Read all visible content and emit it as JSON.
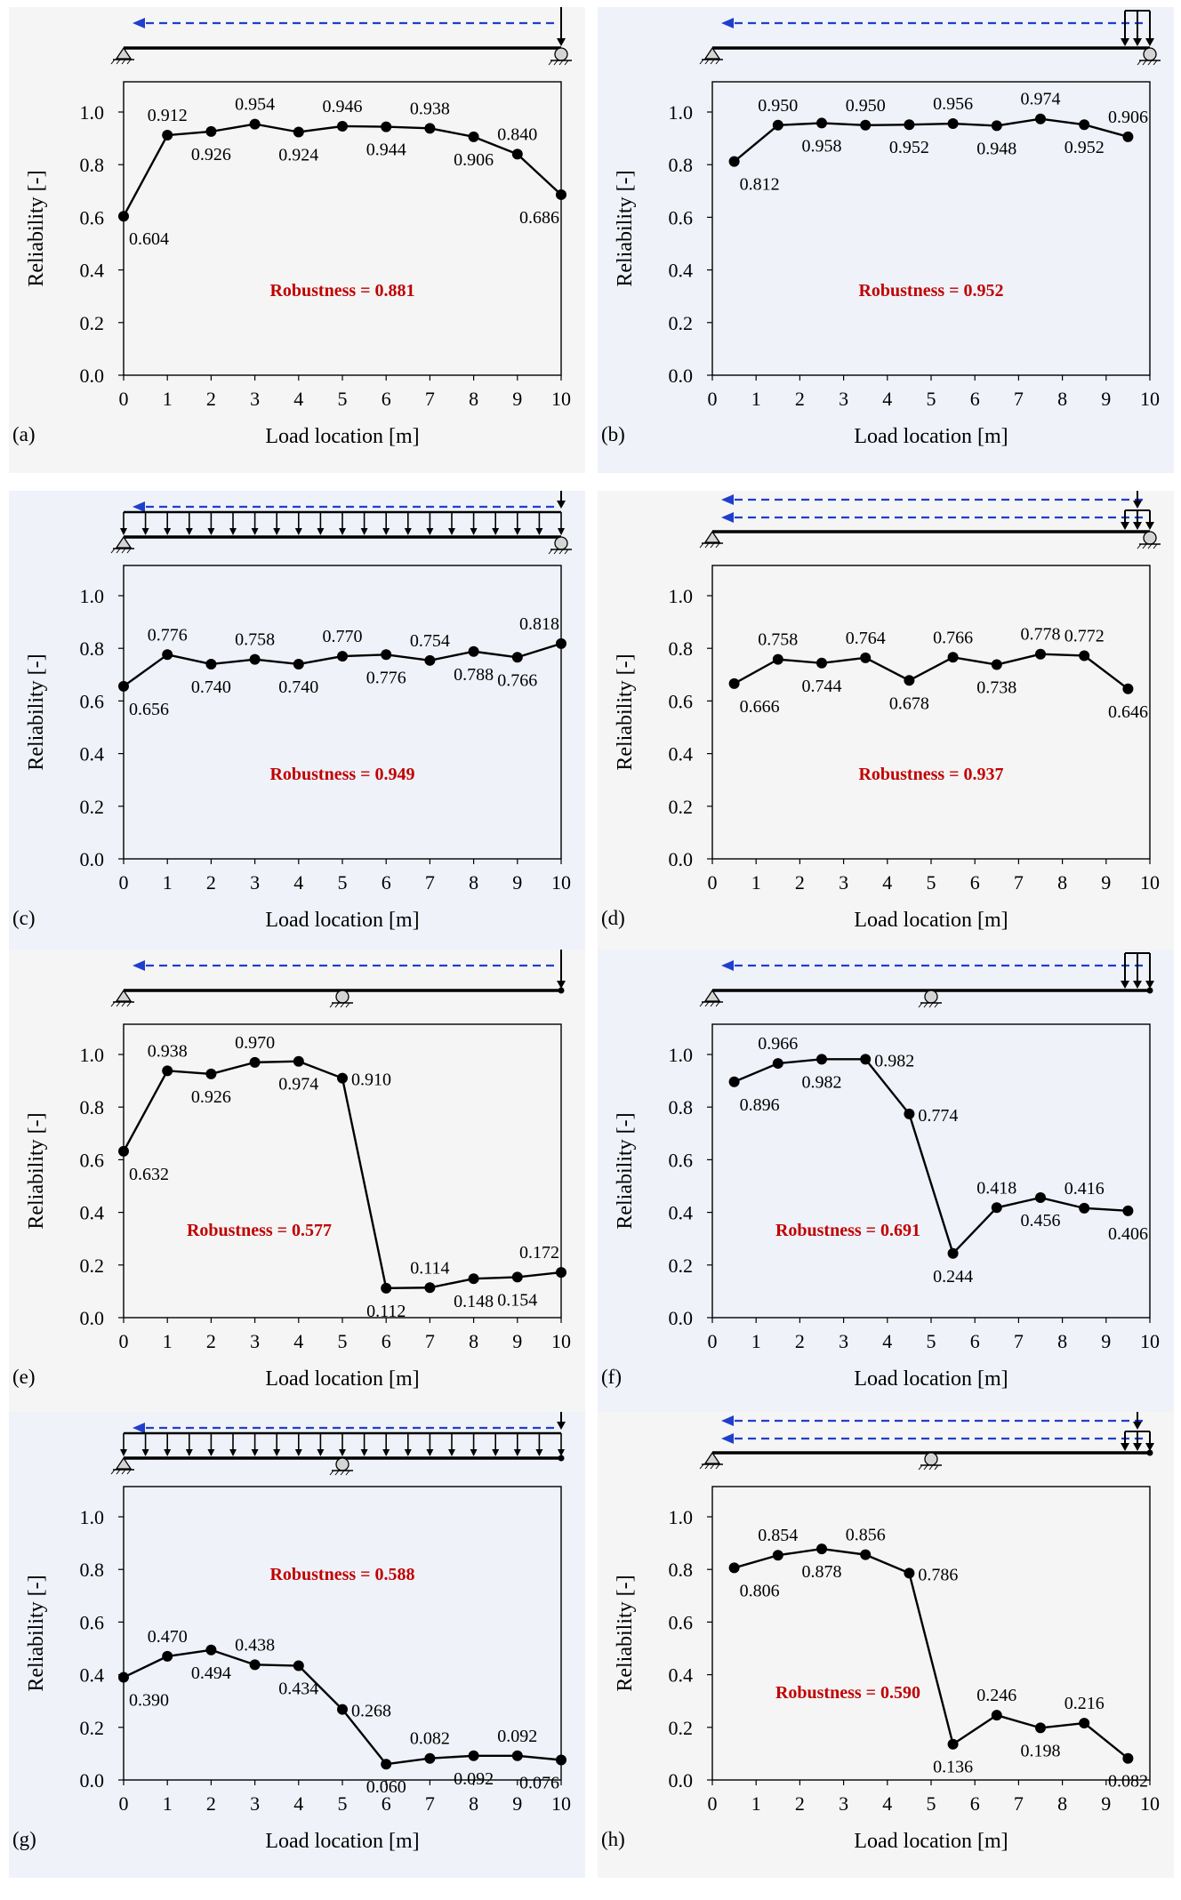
{
  "colors": {
    "panel_bg_gray": "#f5f5f5",
    "panel_bg_blue": "#eff2f9",
    "line": "#000000",
    "robust": "#c00000",
    "arrow": "#1f3fcc",
    "support_fill": "#d4d4d4"
  },
  "chart_data": [
    {
      "type": "line",
      "panel_label": "(a)",
      "bg": "gray",
      "title": "",
      "xlabel": "Load location [m]",
      "ylabel": "Reliability [-]",
      "xlim": [
        0,
        10
      ],
      "ylim": [
        0,
        1.1
      ],
      "x_ticks": [
        0,
        1,
        2,
        3,
        4,
        5,
        6,
        7,
        8,
        9,
        10
      ],
      "y_ticks": [
        "0.0",
        "0.2",
        "0.4",
        "0.6",
        "0.8",
        "1.0"
      ],
      "x": [
        0,
        1,
        2,
        3,
        4,
        5,
        6,
        7,
        8,
        9,
        10
      ],
      "values": [
        0.604,
        0.912,
        0.926,
        0.954,
        0.924,
        0.946,
        0.944,
        0.938,
        0.906,
        0.84,
        0.686
      ],
      "labels": [
        "0.604",
        "0.912",
        "0.926",
        "0.954",
        "0.924",
        "0.946",
        "0.944",
        "0.938",
        "0.906",
        "0.840",
        "0.686"
      ],
      "label_pos": [
        "below",
        "above",
        "below",
        "above",
        "below",
        "above",
        "below",
        "above",
        "below",
        "above",
        "below"
      ],
      "robustness_text": "Robustness = 0.881",
      "robust_pos": "middle",
      "schematic": {
        "supports": "end",
        "load": "point",
        "arrows": 1
      }
    },
    {
      "type": "line",
      "panel_label": "(b)",
      "bg": "blue",
      "title": "",
      "xlabel": "Load location [m]",
      "ylabel": "Reliability [-]",
      "xlim": [
        0,
        10
      ],
      "ylim": [
        0,
        1.1
      ],
      "x_ticks": [
        0,
        1,
        2,
        3,
        4,
        5,
        6,
        7,
        8,
        9,
        10
      ],
      "y_ticks": [
        "0.0",
        "0.2",
        "0.4",
        "0.6",
        "0.8",
        "1.0"
      ],
      "x": [
        0.5,
        1.5,
        2.5,
        3.5,
        4.5,
        5.5,
        6.5,
        7.5,
        8.5,
        9.5
      ],
      "values": [
        0.812,
        0.95,
        0.958,
        0.95,
        0.952,
        0.956,
        0.948,
        0.974,
        0.952,
        0.906
      ],
      "labels": [
        "0.812",
        "0.950",
        "0.958",
        "0.950",
        "0.952",
        "0.956",
        "0.948",
        "0.974",
        "0.952",
        "0.906"
      ],
      "label_pos": [
        "below",
        "above",
        "below",
        "above",
        "below",
        "above",
        "below",
        "above",
        "below",
        "above"
      ],
      "robustness_text": "Robustness = 0.952",
      "robust_pos": "middle",
      "schematic": {
        "supports": "end",
        "load": "triple",
        "arrows": 1
      }
    },
    {
      "type": "line",
      "panel_label": "(c)",
      "bg": "blue",
      "title": "",
      "xlabel": "Load location [m]",
      "ylabel": "Reliability [-]",
      "xlim": [
        0,
        10
      ],
      "ylim": [
        0,
        1.1
      ],
      "x_ticks": [
        0,
        1,
        2,
        3,
        4,
        5,
        6,
        7,
        8,
        9,
        10
      ],
      "y_ticks": [
        "0.0",
        "0.2",
        "0.4",
        "0.6",
        "0.8",
        "1.0"
      ],
      "x": [
        0,
        1,
        2,
        3,
        4,
        5,
        6,
        7,
        8,
        9,
        10
      ],
      "values": [
        0.656,
        0.776,
        0.74,
        0.758,
        0.74,
        0.77,
        0.776,
        0.754,
        0.788,
        0.766,
        0.818
      ],
      "labels": [
        "0.656",
        "0.776",
        "0.740",
        "0.758",
        "0.740",
        "0.770",
        "0.776",
        "0.754",
        "0.788",
        "0.766",
        "0.818"
      ],
      "label_pos": [
        "below",
        "above",
        "below",
        "above",
        "below",
        "above",
        "below",
        "above",
        "below",
        "below",
        "above"
      ],
      "robustness_text": "Robustness = 0.949",
      "robust_pos": "middle",
      "schematic": {
        "supports": "end",
        "load": "udl_point",
        "arrows": 1
      }
    },
    {
      "type": "line",
      "panel_label": "(d)",
      "bg": "gray",
      "title": "",
      "xlabel": "Load location [m]",
      "ylabel": "Reliability [-]",
      "xlim": [
        0,
        10
      ],
      "ylim": [
        0,
        1.1
      ],
      "x_ticks": [
        0,
        1,
        2,
        3,
        4,
        5,
        6,
        7,
        8,
        9,
        10
      ],
      "y_ticks": [
        "0.0",
        "0.2",
        "0.4",
        "0.6",
        "0.8",
        "1.0"
      ],
      "x": [
        0.5,
        1.5,
        2.5,
        3.5,
        4.5,
        5.5,
        6.5,
        7.5,
        8.5,
        9.5
      ],
      "values": [
        0.666,
        0.758,
        0.744,
        0.764,
        0.678,
        0.766,
        0.738,
        0.778,
        0.772,
        0.646
      ],
      "labels": [
        "0.666",
        "0.758",
        "0.744",
        "0.764",
        "0.678",
        "0.766",
        "0.738",
        "0.778",
        "0.772",
        "0.646"
      ],
      "label_pos": [
        "below",
        "above",
        "below",
        "above",
        "below",
        "above",
        "below",
        "above",
        "above",
        "below"
      ],
      "robustness_text": "Robustness = 0.937",
      "robust_pos": "middle",
      "schematic": {
        "supports": "end",
        "load": "point_triple",
        "arrows": 2
      }
    },
    {
      "type": "line",
      "panel_label": "(e)",
      "bg": "gray",
      "title": "",
      "xlabel": "Load location [m]",
      "ylabel": "Reliability [-]",
      "xlim": [
        0,
        10
      ],
      "ylim": [
        0,
        1.1
      ],
      "x_ticks": [
        0,
        1,
        2,
        3,
        4,
        5,
        6,
        7,
        8,
        9,
        10
      ],
      "y_ticks": [
        "0.0",
        "0.2",
        "0.4",
        "0.6",
        "0.8",
        "1.0"
      ],
      "x": [
        0,
        1,
        2,
        3,
        4,
        5,
        6,
        7,
        8,
        9,
        10
      ],
      "values": [
        0.632,
        0.938,
        0.926,
        0.97,
        0.974,
        0.91,
        0.112,
        0.114,
        0.148,
        0.154,
        0.172
      ],
      "labels": [
        "0.632",
        "0.938",
        "0.926",
        "0.970",
        "0.974",
        "0.910",
        "0.112",
        "0.114",
        "0.148",
        "0.154",
        "0.172"
      ],
      "label_pos": [
        "below",
        "above",
        "below",
        "above",
        "below",
        "right",
        "below",
        "above",
        "below",
        "below",
        "above"
      ],
      "robustness_text": "Robustness = 0.577",
      "robust_pos": "low",
      "schematic": {
        "supports": "mid",
        "load": "point",
        "arrows": 1
      }
    },
    {
      "type": "line",
      "panel_label": "(f)",
      "bg": "blue",
      "title": "",
      "xlabel": "Load location [m]",
      "ylabel": "Reliability [-]",
      "xlim": [
        0,
        10
      ],
      "ylim": [
        0,
        1.1
      ],
      "x_ticks": [
        0,
        1,
        2,
        3,
        4,
        5,
        6,
        7,
        8,
        9,
        10
      ],
      "y_ticks": [
        "0.0",
        "0.2",
        "0.4",
        "0.6",
        "0.8",
        "1.0"
      ],
      "x": [
        0.5,
        1.5,
        2.5,
        3.5,
        4.5,
        5.5,
        6.5,
        7.5,
        8.5,
        9.5
      ],
      "values": [
        0.896,
        0.966,
        0.982,
        0.982,
        0.774,
        0.244,
        0.418,
        0.456,
        0.416,
        0.406
      ],
      "labels": [
        "0.896",
        "0.966",
        "0.982",
        "0.982",
        "0.774",
        "0.244",
        "0.418",
        "0.456",
        "0.416",
        "0.406"
      ],
      "label_pos": [
        "below",
        "above",
        "below",
        "right",
        "right",
        "below",
        "above",
        "below",
        "above",
        "below"
      ],
      "robustness_text": "Robustness = 0.691",
      "robust_pos": "low",
      "schematic": {
        "supports": "mid",
        "load": "triple",
        "arrows": 1
      }
    },
    {
      "type": "line",
      "panel_label": "(g)",
      "bg": "blue",
      "title": "",
      "xlabel": "Load location [m]",
      "ylabel": "Reliability [-]",
      "xlim": [
        0,
        10
      ],
      "ylim": [
        0,
        1.1
      ],
      "x_ticks": [
        0,
        1,
        2,
        3,
        4,
        5,
        6,
        7,
        8,
        9,
        10
      ],
      "y_ticks": [
        "0.0",
        "0.2",
        "0.4",
        "0.6",
        "0.8",
        "1.0"
      ],
      "x": [
        0,
        1,
        2,
        3,
        4,
        5,
        6,
        7,
        8,
        9,
        10
      ],
      "values": [
        0.39,
        0.47,
        0.494,
        0.438,
        0.434,
        0.268,
        0.06,
        0.082,
        0.092,
        0.092,
        0.076
      ],
      "labels": [
        "0.390",
        "0.470",
        "0.494",
        "0.438",
        "0.434",
        "0.268",
        "0.060",
        "0.082",
        "0.092",
        "0.092",
        "0.076"
      ],
      "label_pos": [
        "below",
        "above",
        "below",
        "above",
        "below",
        "right",
        "below",
        "above",
        "below",
        "above",
        "below"
      ],
      "robustness_text": "Robustness = 0.588",
      "robust_pos": "high",
      "schematic": {
        "supports": "mid",
        "load": "udl_point",
        "arrows": 1
      }
    },
    {
      "type": "line",
      "panel_label": "(h)",
      "bg": "gray",
      "title": "",
      "xlabel": "Load location [m]",
      "ylabel": "Reliability [-]",
      "xlim": [
        0,
        10
      ],
      "ylim": [
        0,
        1.1
      ],
      "x_ticks": [
        0,
        1,
        2,
        3,
        4,
        5,
        6,
        7,
        8,
        9,
        10
      ],
      "y_ticks": [
        "0.0",
        "0.2",
        "0.4",
        "0.6",
        "0.8",
        "1.0"
      ],
      "x": [
        0.5,
        1.5,
        2.5,
        3.5,
        4.5,
        5.5,
        6.5,
        7.5,
        8.5,
        9.5
      ],
      "values": [
        0.806,
        0.854,
        0.878,
        0.856,
        0.786,
        0.136,
        0.246,
        0.198,
        0.216,
        0.082
      ],
      "labels": [
        "0.806",
        "0.854",
        "0.878",
        "0.856",
        "0.786",
        "0.136",
        "0.246",
        "0.198",
        "0.216",
        "0.082"
      ],
      "label_pos": [
        "below",
        "above",
        "below",
        "above",
        "right",
        "below",
        "above",
        "below",
        "above",
        "below"
      ],
      "robustness_text": "Robustness = 0.590",
      "robust_pos": "low",
      "schematic": {
        "supports": "mid",
        "load": "point_triple",
        "arrows": 2
      }
    }
  ]
}
